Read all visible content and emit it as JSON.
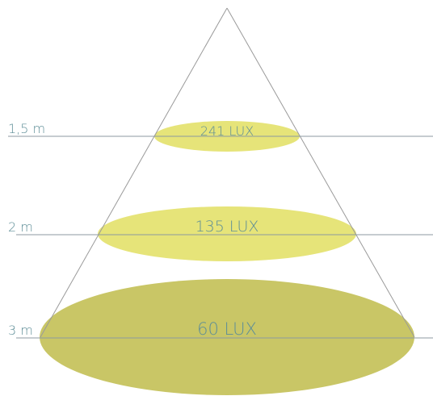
{
  "colors": {
    "cone_line": "#9a9a9a",
    "level_line": "#8c9aa0",
    "text": "#5e8e97",
    "ellipse_light": "#e6e479",
    "ellipse_dark": "#c9c666"
  },
  "levels": [
    {
      "distance": "1,5 m",
      "lux": "241 LUX",
      "color": "#e6e479"
    },
    {
      "distance": "2 m",
      "lux": "135 LUX",
      "color": "#e6e479"
    },
    {
      "distance": "3 m",
      "lux": "60 LUX",
      "color": "#c9c666"
    }
  ]
}
